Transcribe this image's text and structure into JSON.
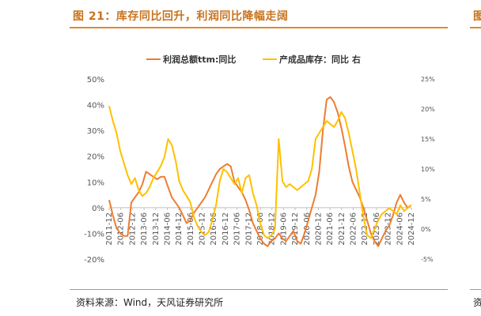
{
  "header": {
    "title": "图 21：库存同比回升，利润同比降幅走阔",
    "right_peek": "图"
  },
  "source": {
    "text": "资料来源：Wind，天风证券研究所",
    "right_peek": "资"
  },
  "colors": {
    "accent": "#e08a2c",
    "profit": "#ed7d31",
    "inventory": "#ffc000"
  },
  "chart_data": {
    "type": "line",
    "legend_position": "top",
    "grid": false,
    "x_labels": [
      "2011-12",
      "2012-06",
      "2012-12",
      "2013-06",
      "2013-12",
      "2014-06",
      "2014-12",
      "2015-06",
      "2015-12",
      "2016-06",
      "2016-12",
      "2017-06",
      "2017-12",
      "2018-06",
      "2018-12",
      "2019-06",
      "2019-12",
      "2020-06",
      "2020-12",
      "2021-06",
      "2021-12",
      "2022-06",
      "2022-12",
      "2023-06",
      "2023-12",
      "2024-06",
      "2024-12"
    ],
    "left_axis": {
      "min": -20,
      "max": 50,
      "ticks": [
        -20,
        -10,
        0,
        10,
        20,
        30,
        40,
        50
      ],
      "tick_labels": [
        "-20%",
        "-10%",
        "0%",
        "10%",
        "20%",
        "30%",
        "40%",
        "50%"
      ]
    },
    "right_axis": {
      "min": -5,
      "max": 25,
      "ticks": [
        -5,
        0,
        5,
        10,
        15,
        20,
        25
      ],
      "tick_labels": [
        "-5%",
        "0%",
        "5%",
        "10%",
        "15%",
        "20%",
        "25%"
      ]
    },
    "series": [
      {
        "name": "利润总额ttm:同比",
        "axis": "left",
        "color": "#ed7d31",
        "points": [
          [
            0,
            3
          ],
          [
            1,
            -3
          ],
          [
            2,
            -8
          ],
          [
            3,
            -10
          ],
          [
            4,
            -11
          ],
          [
            5,
            -11
          ],
          [
            6,
            2
          ],
          [
            7,
            4
          ],
          [
            8,
            6
          ],
          [
            9,
            9
          ],
          [
            10,
            14
          ],
          [
            11,
            13
          ],
          [
            12,
            12
          ],
          [
            13,
            11
          ],
          [
            14,
            12
          ],
          [
            15,
            12
          ],
          [
            16,
            8
          ],
          [
            17,
            4
          ],
          [
            18,
            2
          ],
          [
            19,
            0
          ],
          [
            20,
            -3
          ],
          [
            21,
            -6
          ],
          [
            22,
            -5
          ],
          [
            23,
            -2
          ],
          [
            24,
            0
          ],
          [
            25,
            2
          ],
          [
            26,
            4
          ],
          [
            27,
            7
          ],
          [
            28,
            10
          ],
          [
            29,
            13
          ],
          [
            30,
            15
          ],
          [
            31,
            16
          ],
          [
            32,
            17
          ],
          [
            33,
            16
          ],
          [
            34,
            10
          ],
          [
            35,
            8
          ],
          [
            36,
            6
          ],
          [
            37,
            3
          ],
          [
            38,
            -1
          ],
          [
            39,
            -6
          ],
          [
            40,
            -9
          ],
          [
            41,
            -12
          ],
          [
            42,
            -14
          ],
          [
            43,
            -15
          ],
          [
            44,
            -13
          ],
          [
            45,
            -12
          ],
          [
            46,
            -10
          ],
          [
            47,
            -12
          ],
          [
            48,
            -13
          ],
          [
            49,
            -11
          ],
          [
            50,
            -9
          ],
          [
            51,
            -13
          ],
          [
            52,
            -14
          ],
          [
            53,
            -10
          ],
          [
            54,
            -5
          ],
          [
            55,
            0
          ],
          [
            56,
            5
          ],
          [
            57,
            14
          ],
          [
            58,
            30
          ],
          [
            59,
            42
          ],
          [
            60,
            43
          ],
          [
            61,
            41
          ],
          [
            62,
            37
          ],
          [
            63,
            31
          ],
          [
            64,
            24
          ],
          [
            65,
            16
          ],
          [
            66,
            10
          ],
          [
            67,
            7
          ],
          [
            68,
            4
          ],
          [
            69,
            0
          ],
          [
            70,
            -5
          ],
          [
            71,
            -10
          ],
          [
            72,
            -13
          ],
          [
            73,
            -15
          ],
          [
            74,
            -12
          ],
          [
            75,
            -9
          ],
          [
            76,
            -7
          ],
          [
            77,
            -3
          ],
          [
            78,
            2
          ],
          [
            79,
            5
          ],
          [
            80,
            2
          ],
          [
            81,
            0
          ],
          [
            82,
            1
          ]
        ]
      },
      {
        "name": "产成品库存：同比 右",
        "axis": "right",
        "color": "#ffc000",
        "points": [
          [
            0,
            20.5
          ],
          [
            1,
            18
          ],
          [
            2,
            16
          ],
          [
            3,
            13
          ],
          [
            4,
            11
          ],
          [
            5,
            9
          ],
          [
            6,
            7.5
          ],
          [
            7,
            8.5
          ],
          [
            8,
            6.5
          ],
          [
            9,
            5.5
          ],
          [
            10,
            6
          ],
          [
            11,
            7
          ],
          [
            12,
            8.5
          ],
          [
            13,
            9.5
          ],
          [
            14,
            10.5
          ],
          [
            15,
            12
          ],
          [
            16,
            15
          ],
          [
            17,
            14
          ],
          [
            18,
            11.5
          ],
          [
            19,
            8
          ],
          [
            20,
            6.5
          ],
          [
            21,
            5.5
          ],
          [
            22,
            4.5
          ],
          [
            23,
            2
          ],
          [
            24,
            0.5
          ],
          [
            25,
            -0.5
          ],
          [
            26,
            -1
          ],
          [
            27,
            -0.5
          ],
          [
            28,
            1.5
          ],
          [
            29,
            4
          ],
          [
            30,
            8
          ],
          [
            31,
            10
          ],
          [
            32,
            9.5
          ],
          [
            33,
            8.5
          ],
          [
            34,
            7.5
          ],
          [
            35,
            8.5
          ],
          [
            36,
            6
          ],
          [
            37,
            8.5
          ],
          [
            38,
            9
          ],
          [
            39,
            6
          ],
          [
            40,
            4
          ],
          [
            41,
            1
          ],
          [
            42,
            -1
          ],
          [
            43,
            -1.5
          ],
          [
            44,
            -1
          ],
          [
            45,
            0
          ],
          [
            46,
            15
          ],
          [
            47,
            8
          ],
          [
            48,
            7
          ],
          [
            49,
            7.5
          ],
          [
            50,
            7
          ],
          [
            51,
            6.5
          ],
          [
            52,
            7
          ],
          [
            53,
            7.5
          ],
          [
            54,
            8
          ],
          [
            55,
            10
          ],
          [
            56,
            15
          ],
          [
            57,
            16
          ],
          [
            58,
            17
          ],
          [
            59,
            18
          ],
          [
            60,
            17.5
          ],
          [
            61,
            17
          ],
          [
            62,
            18
          ],
          [
            63,
            19.5
          ],
          [
            64,
            18.5
          ],
          [
            65,
            16
          ],
          [
            66,
            13
          ],
          [
            67,
            10
          ],
          [
            68,
            6
          ],
          [
            69,
            2
          ],
          [
            70,
            -1
          ],
          [
            71,
            -1.5
          ],
          [
            72,
            0
          ],
          [
            73,
            1.5
          ],
          [
            74,
            2.5
          ],
          [
            75,
            3
          ],
          [
            76,
            3.5
          ],
          [
            77,
            3
          ],
          [
            78,
            2.5
          ],
          [
            79,
            4
          ],
          [
            80,
            3
          ],
          [
            81,
            3.5
          ],
          [
            82,
            4
          ]
        ]
      }
    ]
  }
}
